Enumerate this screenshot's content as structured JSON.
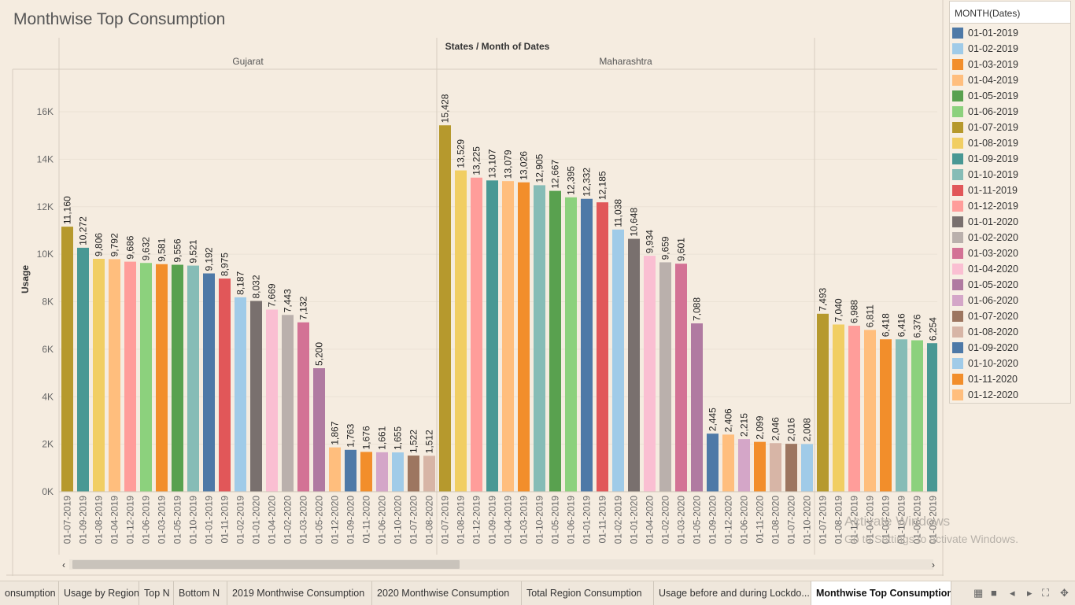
{
  "title": "Monthwise Top Consumption",
  "chart_data": {
    "type": "bar",
    "header": "States / Month of Dates",
    "ylabel": "Usage",
    "ylim": [
      0,
      17000
    ],
    "yticks": [
      0,
      2000,
      4000,
      6000,
      8000,
      10000,
      12000,
      14000,
      16000
    ],
    "ytick_labels": [
      "0K",
      "2K",
      "4K",
      "6K",
      "8K",
      "10K",
      "12K",
      "14K",
      "16K"
    ],
    "panels": [
      {
        "state": "Gujarat",
        "bars": [
          {
            "month": "01-07-2019",
            "value": 11160,
            "label": "11,160"
          },
          {
            "month": "01-09-2019",
            "value": 10272,
            "label": "10,272"
          },
          {
            "month": "01-08-2019",
            "value": 9806,
            "label": "9,806"
          },
          {
            "month": "01-04-2019",
            "value": 9792,
            "label": "9,792"
          },
          {
            "month": "01-12-2019",
            "value": 9686,
            "label": "9,686"
          },
          {
            "month": "01-06-2019",
            "value": 9632,
            "label": "9,632"
          },
          {
            "month": "01-03-2019",
            "value": 9581,
            "label": "9,581"
          },
          {
            "month": "01-05-2019",
            "value": 9556,
            "label": "9,556"
          },
          {
            "month": "01-10-2019",
            "value": 9521,
            "label": "9,521"
          },
          {
            "month": "01-01-2019",
            "value": 9192,
            "label": "9,192"
          },
          {
            "month": "01-11-2019",
            "value": 8975,
            "label": "8,975"
          },
          {
            "month": "01-02-2019",
            "value": 8187,
            "label": "8,187"
          },
          {
            "month": "01-01-2020",
            "value": 8032,
            "label": "8,032"
          },
          {
            "month": "01-04-2020",
            "value": 7669,
            "label": "7,669"
          },
          {
            "month": "01-02-2020",
            "value": 7443,
            "label": "7,443"
          },
          {
            "month": "01-03-2020",
            "value": 7132,
            "label": "7,132"
          },
          {
            "month": "01-05-2020",
            "value": 5200,
            "label": "5,200"
          },
          {
            "month": "01-12-2020",
            "value": 1867,
            "label": "1,867"
          },
          {
            "month": "01-09-2020",
            "value": 1763,
            "label": "1,763"
          },
          {
            "month": "01-11-2020",
            "value": 1676,
            "label": "1,676"
          },
          {
            "month": "01-06-2020",
            "value": 1661,
            "label": "1,661"
          },
          {
            "month": "01-10-2020",
            "value": 1655,
            "label": "1,655"
          },
          {
            "month": "01-07-2020",
            "value": 1522,
            "label": "1,522"
          },
          {
            "month": "01-08-2020",
            "value": 1512,
            "label": "1,512"
          }
        ]
      },
      {
        "state": "Maharashtra",
        "bars": [
          {
            "month": "01-07-2019",
            "value": 15428,
            "label": "15,428"
          },
          {
            "month": "01-08-2019",
            "value": 13529,
            "label": "13,529"
          },
          {
            "month": "01-12-2019",
            "value": 13225,
            "label": "13,225"
          },
          {
            "month": "01-09-2019",
            "value": 13107,
            "label": "13,107"
          },
          {
            "month": "01-04-2019",
            "value": 13079,
            "label": "13,079"
          },
          {
            "month": "01-03-2019",
            "value": 13026,
            "label": "13,026"
          },
          {
            "month": "01-10-2019",
            "value": 12905,
            "label": "12,905"
          },
          {
            "month": "01-05-2019",
            "value": 12667,
            "label": "12,667"
          },
          {
            "month": "01-06-2019",
            "value": 12395,
            "label": "12,395"
          },
          {
            "month": "01-01-2019",
            "value": 12332,
            "label": "12,332"
          },
          {
            "month": "01-11-2019",
            "value": 12185,
            "label": "12,185"
          },
          {
            "month": "01-02-2019",
            "value": 11038,
            "label": "11,038"
          },
          {
            "month": "01-01-2020",
            "value": 10648,
            "label": "10,648"
          },
          {
            "month": "01-04-2020",
            "value": 9934,
            "label": "9,934"
          },
          {
            "month": "01-02-2020",
            "value": 9659,
            "label": "9,659"
          },
          {
            "month": "01-03-2020",
            "value": 9601,
            "label": "9,601"
          },
          {
            "month": "01-05-2020",
            "value": 7088,
            "label": "7,088"
          },
          {
            "month": "01-09-2020",
            "value": 2445,
            "label": "2,445"
          },
          {
            "month": "01-12-2020",
            "value": 2406,
            "label": "2,406"
          },
          {
            "month": "01-06-2020",
            "value": 2215,
            "label": "2,215"
          },
          {
            "month": "01-11-2020",
            "value": 2099,
            "label": "2,099"
          },
          {
            "month": "01-08-2020",
            "value": 2046,
            "label": "2,046"
          },
          {
            "month": "01-07-2020",
            "value": 2016,
            "label": "2,016"
          },
          {
            "month": "01-10-2020",
            "value": 2008,
            "label": "2,008"
          }
        ]
      },
      {
        "state": "Rajasthan",
        "bars": [
          {
            "month": "01-07-2019",
            "value": 7493,
            "label": "7,493"
          },
          {
            "month": "01-08-2019",
            "value": 7040,
            "label": "7,040"
          },
          {
            "month": "01-12-2019",
            "value": 6988,
            "label": "6,988"
          },
          {
            "month": "01-04-2019",
            "value": 6811,
            "label": "6,811"
          },
          {
            "month": "01-03-2019",
            "value": 6418,
            "label": "6,418"
          },
          {
            "month": "01-10-2019",
            "value": 6416,
            "label": "6,416"
          },
          {
            "month": "01-06-2019",
            "value": 6376,
            "label": "6,376"
          },
          {
            "month": "01-09-2019",
            "value": 6254,
            "label": "6,254"
          }
        ]
      }
    ]
  },
  "legend": {
    "title": "MONTH(Dates)",
    "items": [
      {
        "label": "01-01-2019",
        "color": "#4e79a7"
      },
      {
        "label": "01-02-2019",
        "color": "#a0cbe8"
      },
      {
        "label": "01-03-2019",
        "color": "#f28e2b"
      },
      {
        "label": "01-04-2019",
        "color": "#ffbe7d"
      },
      {
        "label": "01-05-2019",
        "color": "#59a14f"
      },
      {
        "label": "01-06-2019",
        "color": "#8cd17d"
      },
      {
        "label": "01-07-2019",
        "color": "#b6992d"
      },
      {
        "label": "01-08-2019",
        "color": "#f1ce63"
      },
      {
        "label": "01-09-2019",
        "color": "#499894"
      },
      {
        "label": "01-10-2019",
        "color": "#86bcb6"
      },
      {
        "label": "01-11-2019",
        "color": "#e15759"
      },
      {
        "label": "01-12-2019",
        "color": "#ff9d9a"
      },
      {
        "label": "01-01-2020",
        "color": "#79706e"
      },
      {
        "label": "01-02-2020",
        "color": "#bab0ac"
      },
      {
        "label": "01-03-2020",
        "color": "#d37295"
      },
      {
        "label": "01-04-2020",
        "color": "#fabfd2"
      },
      {
        "label": "01-05-2020",
        "color": "#b07aa1"
      },
      {
        "label": "01-06-2020",
        "color": "#d4a6c8"
      },
      {
        "label": "01-07-2020",
        "color": "#9d7660"
      },
      {
        "label": "01-08-2020",
        "color": "#d7b5a6"
      },
      {
        "label": "01-09-2020",
        "color": "#4e79a7"
      },
      {
        "label": "01-10-2020",
        "color": "#a0cbe8"
      },
      {
        "label": "01-11-2020",
        "color": "#f28e2b"
      },
      {
        "label": "01-12-2020",
        "color": "#ffbe7d"
      }
    ]
  },
  "tabs": [
    {
      "label": "onsumption",
      "active": false
    },
    {
      "label": "Usage by Region",
      "active": false
    },
    {
      "label": "Top N",
      "active": false
    },
    {
      "label": "Bottom N",
      "active": false
    },
    {
      "label": "2019 Monthwise Consumption",
      "active": false
    },
    {
      "label": "2020 Monthwise Consumption",
      "active": false
    },
    {
      "label": "Total Region Consumption",
      "active": false
    },
    {
      "label": "Usage before and during Lockdo...",
      "active": false
    },
    {
      "label": "Monthwise Top Consumption",
      "active": true
    }
  ],
  "watermark": {
    "line1": "Activate Windows",
    "line2": "Go to Settings to activate Windows."
  }
}
